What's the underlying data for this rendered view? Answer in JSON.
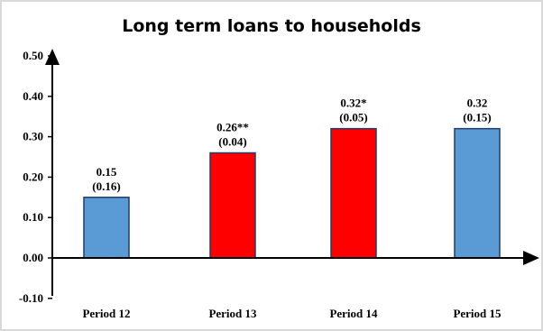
{
  "chart_data": {
    "type": "bar",
    "title": "Long term loans to households",
    "xlabel": "",
    "ylabel": "",
    "categories": [
      "Period 12",
      "Period 13",
      "Period 14",
      "Period 15"
    ],
    "values": [
      0.15,
      0.26,
      0.32,
      0.32
    ],
    "value_labels": [
      "0.15",
      "0.26**",
      "0.32*",
      "0.32"
    ],
    "std_errors": [
      "(0.16)",
      "(0.04)",
      "(0.05)",
      "(0.15)"
    ],
    "bar_colors": [
      "#5b9bd5",
      "#ff0000",
      "#ff0000",
      "#5b9bd5"
    ],
    "y_ticks": [
      "-0.10",
      "0.00",
      "0.10",
      "0.20",
      "0.30",
      "0.40",
      "0.50"
    ],
    "ylim": [
      -0.1,
      0.5
    ],
    "grid": false,
    "legend": "none"
  }
}
